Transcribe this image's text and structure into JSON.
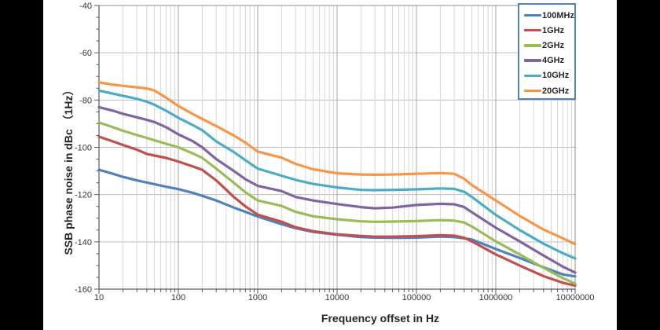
{
  "style": {
    "page_bg": "#000000",
    "chart_bg": "#ffffff",
    "grid_minor": "#D6D6D6",
    "grid_major": "#A3A3A3",
    "grid_horizontal": "#BDBDBD",
    "axis_line": "#595959",
    "plot_border": "#8C8C8C",
    "legend_border": "#4F81BD",
    "tick_text": "#333333"
  },
  "axes": {
    "x_tick_labels": [
      "10",
      "100",
      "1000",
      "10000",
      "100000",
      "1000000",
      "10000000"
    ],
    "y_tick_labels": [
      "-40",
      "-60",
      "-80",
      "-100",
      "-120",
      "-140",
      "-160"
    ],
    "y_minor_tick_step_db": 5
  },
  "chart_data": {
    "type": "line",
    "title": "",
    "xlabel": "Frequency offset in Hz",
    "ylabel": "SSB phase noise in dBc （1Hz）",
    "x_scale": "log",
    "xlim": [
      10,
      10000000
    ],
    "ylim": [
      -160,
      -40
    ],
    "grid": true,
    "legend_position": "top-right-inside",
    "x": [
      10,
      15,
      20,
      30,
      40,
      50,
      70,
      100,
      150,
      200,
      300,
      500,
      700,
      1000,
      2000,
      3000,
      5000,
      10000,
      20000,
      30000,
      50000,
      100000,
      200000,
      300000,
      400000,
      500000,
      1000000,
      2000000,
      4000000,
      7000000,
      10000000
    ],
    "series": [
      {
        "name": "100MHz",
        "color": "#4F81BD",
        "values": [
          -109.5,
          -111.2,
          -112.5,
          -114,
          -114.9,
          -115.6,
          -116.7,
          -117.7,
          -119.2,
          -120.5,
          -122.5,
          -125.5,
          -127.3,
          -129.3,
          -132.5,
          -134.2,
          -135.8,
          -137,
          -138,
          -138.2,
          -138.3,
          -138.2,
          -137.8,
          -138,
          -138.5,
          -139,
          -143,
          -146.8,
          -150.8,
          -153.8,
          -154.6
        ]
      },
      {
        "name": "1GHz",
        "color": "#C0504D",
        "values": [
          -95.5,
          -97.5,
          -99,
          -101,
          -102.8,
          -103.5,
          -104.5,
          -106,
          -108,
          -109.5,
          -114,
          -121,
          -125,
          -128.5,
          -131.5,
          -133.8,
          -135.5,
          -136.8,
          -137.5,
          -137.8,
          -137.8,
          -137.6,
          -137.2,
          -137.4,
          -138.3,
          -139.8,
          -145.3,
          -150,
          -154.5,
          -157.3,
          -158.5
        ]
      },
      {
        "name": "2GHz",
        "color": "#9BBB59",
        "values": [
          -89.5,
          -91.5,
          -93,
          -94.8,
          -96,
          -97,
          -98.5,
          -100,
          -102.5,
          -104.5,
          -109,
          -115,
          -119,
          -122.5,
          -124.8,
          -127.3,
          -129.2,
          -130.4,
          -131.3,
          -131.5,
          -131.4,
          -131.2,
          -130.8,
          -131,
          -131.8,
          -133.5,
          -139.8,
          -145.3,
          -151,
          -155.3,
          -157.7
        ]
      },
      {
        "name": "4GHz",
        "color": "#8064A2",
        "values": [
          -83,
          -84.5,
          -85.8,
          -87.3,
          -88.4,
          -89.3,
          -91.5,
          -94.5,
          -97.3,
          -100,
          -105,
          -110,
          -113.5,
          -116.3,
          -118.5,
          -121,
          -122.5,
          -124,
          -125.3,
          -125.8,
          -125.5,
          -124.4,
          -123.9,
          -124.1,
          -125.3,
          -127.5,
          -134,
          -139.8,
          -145.8,
          -150.5,
          -153
        ]
      },
      {
        "name": "10GHz",
        "color": "#4BACC6",
        "values": [
          -76,
          -77.3,
          -78.2,
          -79.5,
          -80.7,
          -82,
          -84.5,
          -87.5,
          -90.5,
          -92.8,
          -97.5,
          -102,
          -105.5,
          -109,
          -112,
          -113.8,
          -115.5,
          -117,
          -118,
          -118.1,
          -118,
          -117.8,
          -117.4,
          -117.6,
          -118.8,
          -121,
          -128.6,
          -135,
          -140.8,
          -144.8,
          -147
        ]
      },
      {
        "name": "20GHz",
        "color": "#F79646",
        "values": [
          -72.5,
          -73.5,
          -74,
          -74.6,
          -75.1,
          -76,
          -79,
          -82.5,
          -85.8,
          -88,
          -91,
          -95,
          -98,
          -101.8,
          -104.4,
          -107,
          -109.3,
          -111,
          -111.5,
          -111.6,
          -111.5,
          -111.2,
          -110.9,
          -111.2,
          -113.3,
          -116,
          -122.5,
          -129,
          -134.8,
          -138.5,
          -141
        ]
      }
    ]
  }
}
